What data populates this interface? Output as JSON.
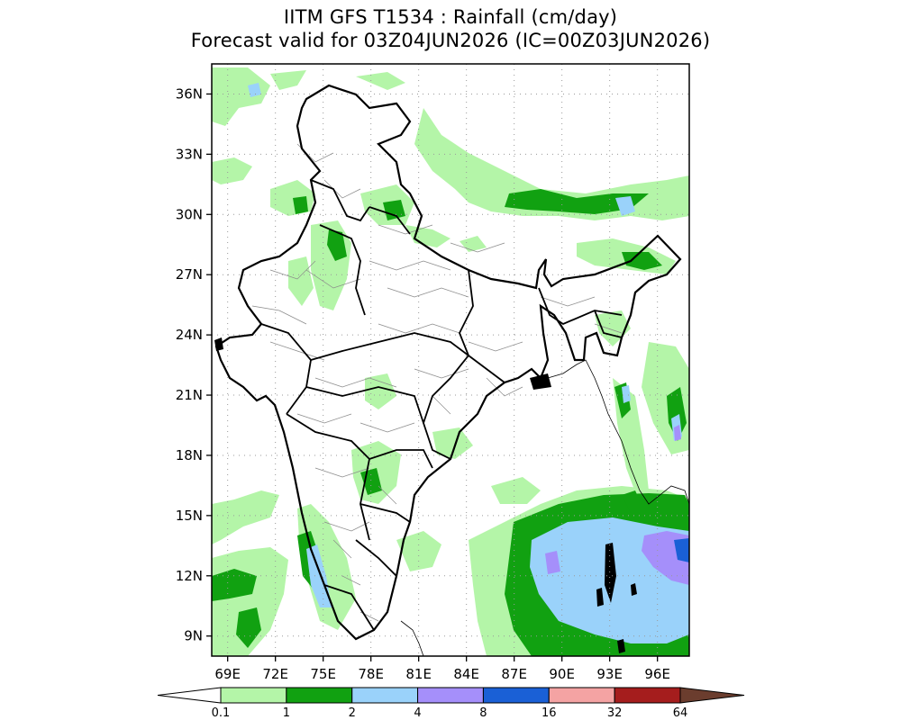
{
  "title": {
    "line1": "IITM GFS T1534 : Rainfall (cm/day)",
    "line2": "Forecast valid for 03Z04JUN2026 (IC=00Z03JUN2026)"
  },
  "map": {
    "lon_range": [
      68,
      98
    ],
    "lat_range": [
      8,
      37.5
    ],
    "lat_ticks": [
      {
        "value": 9,
        "label": "9N"
      },
      {
        "value": 12,
        "label": "12N"
      },
      {
        "value": 15,
        "label": "15N"
      },
      {
        "value": 18,
        "label": "18N"
      },
      {
        "value": 21,
        "label": "21N"
      },
      {
        "value": 24,
        "label": "24N"
      },
      {
        "value": 27,
        "label": "27N"
      },
      {
        "value": 30,
        "label": "30N"
      },
      {
        "value": 33,
        "label": "33N"
      },
      {
        "value": 36,
        "label": "36N"
      }
    ],
    "lon_ticks": [
      {
        "value": 69,
        "label": "69E"
      },
      {
        "value": 72,
        "label": "72E"
      },
      {
        "value": 75,
        "label": "75E"
      },
      {
        "value": 78,
        "label": "78E"
      },
      {
        "value": 81,
        "label": "81E"
      },
      {
        "value": 84,
        "label": "84E"
      },
      {
        "value": 87,
        "label": "87E"
      },
      {
        "value": 90,
        "label": "90E"
      },
      {
        "value": 93,
        "label": "93E"
      },
      {
        "value": 96,
        "label": "96E"
      }
    ],
    "grid": "dotted"
  },
  "colorbar": {
    "labels": [
      "0.1",
      "1",
      "2",
      "4",
      "8",
      "16",
      "32",
      "64"
    ],
    "colors": [
      "#b4f5a8",
      "#11a111",
      "#9ad2fa",
      "#a58ffa",
      "#1a60d6",
      "#f4a3a3",
      "#a51d1d"
    ],
    "low_end_color": "#ffffff",
    "high_end_color": "#6b3d2e",
    "colors_legend": {
      "light_green": "#b4f5a8",
      "green": "#11a111",
      "light_blue": "#9ad2fa",
      "purple": "#a58ffa",
      "blue": "#1a60d6",
      "pink": "#f4a3a3",
      "dark_red": "#a51d1d"
    }
  }
}
